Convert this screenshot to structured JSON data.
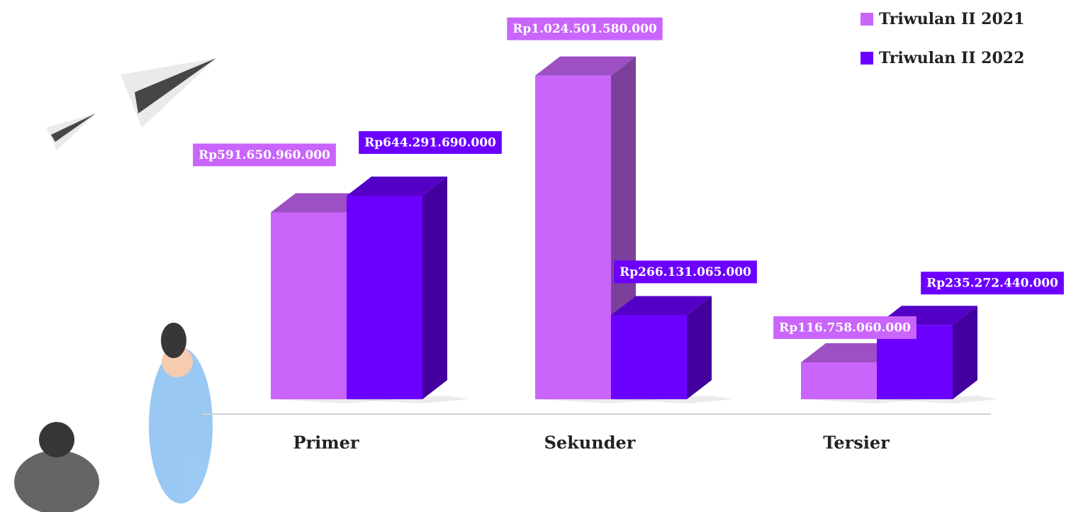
{
  "chart_data": {
    "type": "bar3d",
    "categories": [
      "Primer",
      "Sekunder",
      "Tersier"
    ],
    "series": [
      {
        "name": "Triwulan II 2021",
        "color": "#c965fb",
        "values": [
          591650960000,
          1024501580000,
          116758060000
        ],
        "value_labels": [
          "Rp591.650.960.000",
          "Rp1.024.501.580.000",
          "Rp116.758.060.000"
        ]
      },
      {
        "name": "Triwulan II 2022",
        "color": "#6c00ff",
        "values": [
          644291690000,
          266131065000,
          235272440000
        ],
        "value_labels": [
          "Rp644.291.690.000",
          "Rp266.131.065.000",
          "Rp235.272.440.000"
        ]
      }
    ],
    "ylim": [
      0,
      1100000000000
    ],
    "legend": "top-right"
  }
}
